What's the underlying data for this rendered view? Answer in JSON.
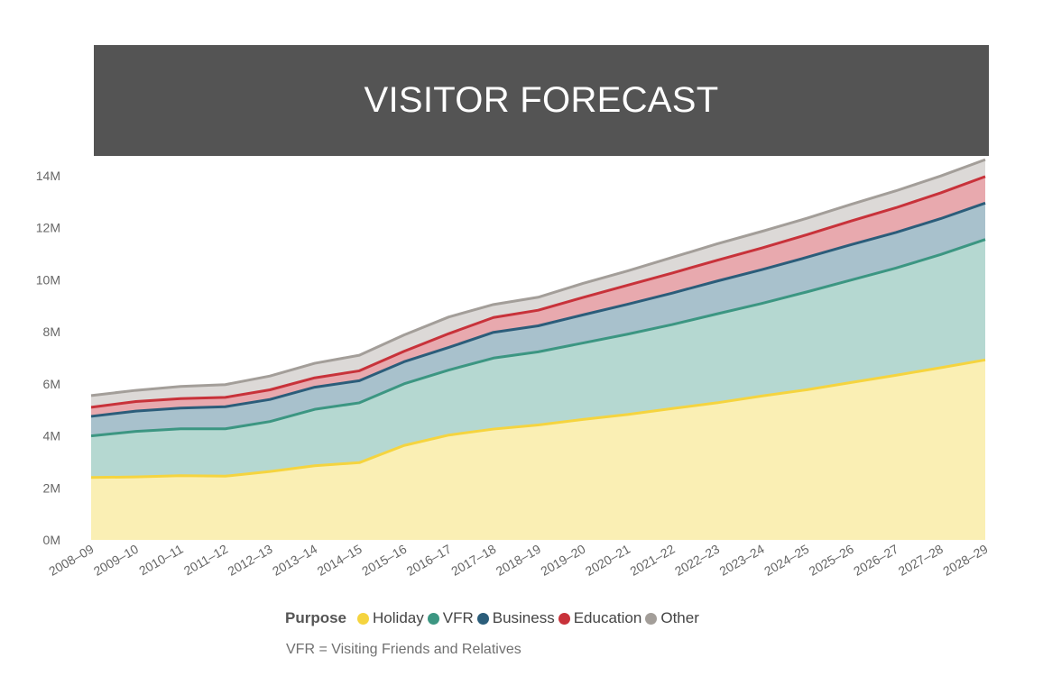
{
  "chart_data": {
    "type": "area",
    "stacked": true,
    "title": "VISITOR FORECAST",
    "categories": [
      "2008–09",
      "2009–10",
      "2010–11",
      "2011–12",
      "2012–13",
      "2013–14",
      "2014–15",
      "2015–16",
      "2016–17",
      "2017–18",
      "2018–19",
      "2019–20",
      "2020–21",
      "2021–22",
      "2022–23",
      "2023–24",
      "2024–25",
      "2025–26",
      "2026–27",
      "2027–28",
      "2028–29"
    ],
    "series": [
      {
        "name": "Holiday",
        "color": "#f5d43f",
        "fill": "#faefb4",
        "values": [
          2.4,
          2.42,
          2.47,
          2.45,
          2.63,
          2.85,
          2.97,
          3.63,
          4.03,
          4.26,
          4.42,
          4.63,
          4.82,
          5.05,
          5.27,
          5.53,
          5.77,
          6.05,
          6.33,
          6.62,
          6.92
        ]
      },
      {
        "name": "VFR",
        "color": "#3c9682",
        "fill": "#b5d8d1",
        "values": [
          1.6,
          1.75,
          1.8,
          1.82,
          1.92,
          2.17,
          2.3,
          2.37,
          2.5,
          2.73,
          2.81,
          2.94,
          3.09,
          3.23,
          3.42,
          3.56,
          3.76,
          3.94,
          4.12,
          4.35,
          4.63
        ]
      },
      {
        "name": "Business",
        "color": "#2b5d7a",
        "fill": "#a8c1cc",
        "values": [
          0.75,
          0.78,
          0.8,
          0.85,
          0.85,
          0.85,
          0.85,
          0.85,
          0.87,
          0.99,
          1.0,
          1.08,
          1.15,
          1.21,
          1.26,
          1.3,
          1.33,
          1.36,
          1.37,
          1.38,
          1.4
        ]
      },
      {
        "name": "Education",
        "color": "#c8323a",
        "fill": "#e8a9ae",
        "values": [
          0.35,
          0.37,
          0.36,
          0.36,
          0.37,
          0.36,
          0.38,
          0.4,
          0.53,
          0.57,
          0.6,
          0.67,
          0.73,
          0.77,
          0.8,
          0.83,
          0.87,
          0.91,
          0.95,
          0.99,
          1.02
        ]
      },
      {
        "name": "Other",
        "color": "#a39e99",
        "fill": "#dcd9d7",
        "values": [
          0.45,
          0.43,
          0.47,
          0.49,
          0.53,
          0.56,
          0.6,
          0.63,
          0.64,
          0.5,
          0.5,
          0.54,
          0.55,
          0.6,
          0.63,
          0.64,
          0.63,
          0.64,
          0.65,
          0.65,
          0.65
        ]
      }
    ],
    "yticks": [
      "0M",
      "2M",
      "4M",
      "6M",
      "8M",
      "10M",
      "12M",
      "14M"
    ],
    "ylim": [
      0,
      14
    ],
    "legend_title": "Purpose",
    "legend_position": "bottom",
    "footnote": "VFR = Visiting Friends and Relatives",
    "grid": false
  }
}
